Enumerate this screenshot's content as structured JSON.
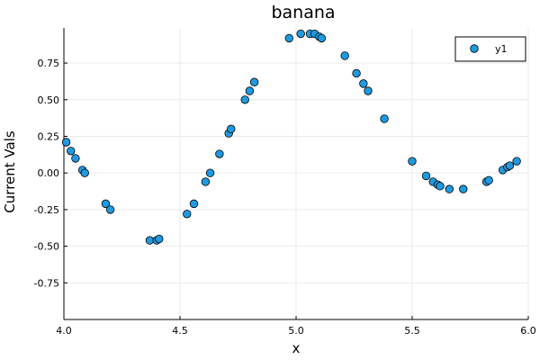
{
  "chart_data": {
    "type": "scatter",
    "title": "banana",
    "xlabel": "x",
    "ylabel": "Current Vals",
    "xlim": [
      4.0,
      6.0
    ],
    "ylim": [
      -1.0,
      0.99
    ],
    "x_ticks": [
      4.0,
      4.5,
      5.0,
      5.5,
      6.0
    ],
    "x_tick_labels": [
      "4.0",
      "4.5",
      "5.0",
      "5.5",
      "6.0"
    ],
    "y_ticks": [
      -0.75,
      -0.5,
      -0.25,
      0.0,
      0.25,
      0.5,
      0.75
    ],
    "y_tick_labels": [
      "-0.75",
      "-0.50",
      "-0.25",
      "0.00",
      "0.25",
      "0.50",
      "0.75"
    ],
    "grid": true,
    "legend_position": "top-right",
    "series": [
      {
        "name": "y1",
        "color": "#1f9ae0",
        "points": [
          [
            4.01,
            0.21
          ],
          [
            4.03,
            0.15
          ],
          [
            4.05,
            0.1
          ],
          [
            4.08,
            0.02
          ],
          [
            4.09,
            0.0
          ],
          [
            4.18,
            -0.21
          ],
          [
            4.2,
            -0.25
          ],
          [
            4.37,
            -0.46
          ],
          [
            4.4,
            -0.46
          ],
          [
            4.41,
            -0.45
          ],
          [
            4.53,
            -0.28
          ],
          [
            4.56,
            -0.21
          ],
          [
            4.61,
            -0.06
          ],
          [
            4.63,
            0.0
          ],
          [
            4.67,
            0.13
          ],
          [
            4.71,
            0.27
          ],
          [
            4.72,
            0.3
          ],
          [
            4.78,
            0.5
          ],
          [
            4.8,
            0.56
          ],
          [
            4.82,
            0.62
          ],
          [
            4.97,
            0.92
          ],
          [
            5.02,
            0.95
          ],
          [
            5.06,
            0.95
          ],
          [
            5.08,
            0.95
          ],
          [
            5.1,
            0.93
          ],
          [
            5.11,
            0.92
          ],
          [
            5.21,
            0.8
          ],
          [
            5.26,
            0.68
          ],
          [
            5.29,
            0.61
          ],
          [
            5.31,
            0.56
          ],
          [
            5.38,
            0.37
          ],
          [
            5.5,
            0.08
          ],
          [
            5.56,
            -0.02
          ],
          [
            5.59,
            -0.06
          ],
          [
            5.61,
            -0.08
          ],
          [
            5.62,
            -0.09
          ],
          [
            5.66,
            -0.11
          ],
          [
            5.72,
            -0.11
          ],
          [
            5.82,
            -0.06
          ],
          [
            5.83,
            -0.05
          ],
          [
            5.89,
            0.02
          ],
          [
            5.91,
            0.04
          ],
          [
            5.92,
            0.05
          ],
          [
            5.95,
            0.08
          ]
        ]
      }
    ]
  }
}
